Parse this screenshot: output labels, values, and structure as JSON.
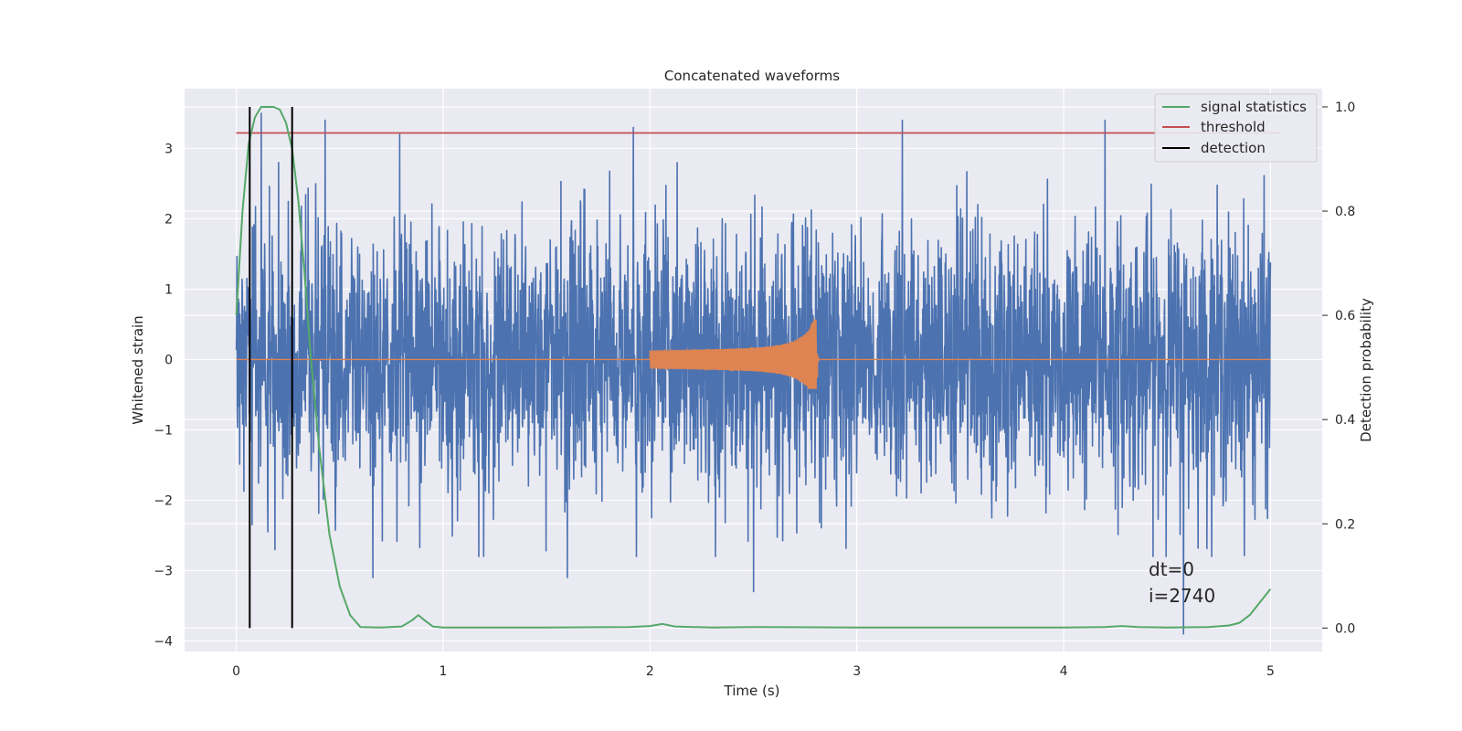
{
  "chart_data": {
    "type": "line",
    "title": "Concatenated waveforms",
    "xlabel": "Time (s)",
    "ylabel": "Whitened strain",
    "y2label": "Detection probability",
    "xlim": [
      -0.25,
      5.25
    ],
    "ylim": [
      -4.15,
      3.85
    ],
    "y2lim": [
      -0.045,
      1.035
    ],
    "xticks": [
      0,
      1,
      2,
      3,
      4,
      5
    ],
    "yticks": [
      -4,
      -3,
      -2,
      -1,
      0,
      1,
      2,
      3
    ],
    "y2ticks": [
      0.0,
      0.2,
      0.4,
      0.6,
      0.8,
      1.0
    ],
    "xtick_labels": [
      "0",
      "1",
      "2",
      "3",
      "4",
      "5"
    ],
    "ytick_labels": [
      "−4",
      "−3",
      "−2",
      "−1",
      "0",
      "1",
      "2",
      "3"
    ],
    "y2tick_labels": [
      "0.0",
      "0.2",
      "0.4",
      "0.6",
      "0.8",
      "1.0"
    ],
    "grid": true,
    "legend_position": "top-right",
    "legend": [
      "signal statistics",
      "threshold",
      "detection"
    ],
    "annotation": [
      "dt=0",
      "i=2740"
    ],
    "colors": {
      "background": "#eaeaf2",
      "strain": "#4c72b0",
      "waveform": "#dd8452",
      "signal_statistics": "#55a868",
      "threshold": "#c44e52",
      "detection": "#000000"
    },
    "strain_noise": {
      "x_range": [
        0,
        5
      ],
      "typical_range": [
        -2.5,
        2.5
      ],
      "extremes": [
        [
          0.12,
          3.5
        ],
        [
          0.43,
          3.4
        ],
        [
          0.79,
          3.2
        ],
        [
          1.92,
          3.3
        ],
        [
          3.22,
          3.4
        ],
        [
          4.2,
          3.4
        ],
        [
          0.66,
          -3.1
        ],
        [
          1.6,
          -3.1
        ],
        [
          2.5,
          -3.3
        ],
        [
          4.58,
          -3.9
        ]
      ]
    },
    "waveform": {
      "x_range": [
        2.0,
        2.82
      ],
      "amplitude_start": 0.13,
      "peak_time": 2.81,
      "peak_amplitude": 0.57,
      "peak_amplitude_negative": -0.42
    },
    "threshold": {
      "x": [
        0,
        5.05
      ],
      "y": 0.95
    },
    "detection_lines": {
      "x": [
        0.065,
        0.27
      ],
      "y_range": [
        0,
        1.0
      ]
    },
    "signal_statistics": {
      "x": [
        0,
        0.03,
        0.06,
        0.09,
        0.12,
        0.15,
        0.18,
        0.21,
        0.24,
        0.27,
        0.3,
        0.33,
        0.36,
        0.4,
        0.45,
        0.5,
        0.55,
        0.6,
        0.7,
        0.8,
        0.85,
        0.88,
        0.91,
        0.95,
        1.0,
        1.5,
        1.9,
        2.0,
        2.06,
        2.12,
        2.3,
        2.5,
        3.0,
        3.5,
        4.0,
        4.2,
        4.28,
        4.36,
        4.5,
        4.7,
        4.8,
        4.85,
        4.9,
        4.93,
        4.97,
        5.0
      ],
      "y": [
        0.6,
        0.8,
        0.93,
        0.98,
        1.0,
        1.0,
        1.0,
        0.995,
        0.97,
        0.92,
        0.82,
        0.68,
        0.52,
        0.35,
        0.18,
        0.08,
        0.025,
        0.002,
        0.001,
        0.003,
        0.015,
        0.025,
        0.015,
        0.003,
        0.001,
        0.001,
        0.002,
        0.004,
        0.008,
        0.003,
        0.001,
        0.002,
        0.001,
        0.001,
        0.001,
        0.002,
        0.004,
        0.002,
        0.001,
        0.002,
        0.005,
        0.01,
        0.025,
        0.04,
        0.06,
        0.075
      ]
    }
  }
}
